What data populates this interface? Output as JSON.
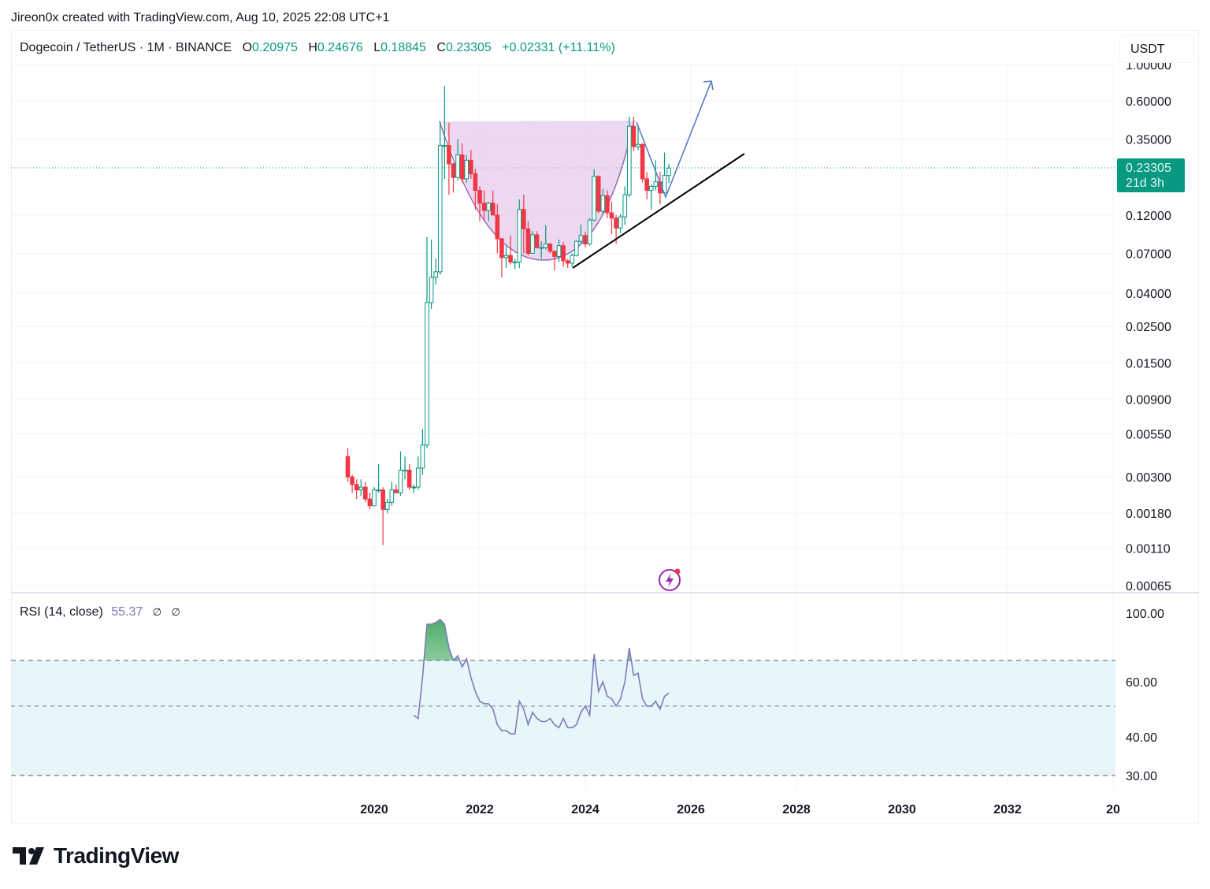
{
  "attribution": "Jireon0x created with TradingView.com, Aug 10, 2025 22:08 UTC+1",
  "legend": {
    "symbol": "Dogecoin / TetherUS · 1M · BINANCE",
    "open_label": "O",
    "open": "0.20975",
    "high_label": "H",
    "high": "0.24676",
    "low_label": "L",
    "low": "0.18845",
    "close_label": "C",
    "close": "0.23305",
    "change": "+0.02331 (+11.11%)"
  },
  "currency_button": "USDT",
  "last_price": {
    "value": "0.23305",
    "countdown": "21d 3h"
  },
  "rsi_legend": {
    "label": "RSI (14, close)",
    "value": "55.37",
    "empty1": "∅",
    "empty2": "∅"
  },
  "logo_text": "TradingView",
  "colors": {
    "up": "#089981",
    "down": "#f23645",
    "rsi_line": "#7e7bb9",
    "cup_fill": "#e1bee7",
    "rsi_band": "#e6f6fb",
    "arrow": "#5b7cc4",
    "trendline": "#000000"
  },
  "icons": {
    "alert": "lightning-alert-icon"
  },
  "chart_data": [
    {
      "type": "candlestick",
      "title": "Dogecoin / TetherUS · 1M · BINANCE",
      "y_scale": "log",
      "y_ticks": [
        "1.00000",
        "0.60000",
        "0.35000",
        "0.12000",
        "0.07000",
        "0.04000",
        "0.02500",
        "0.01500",
        "0.00900",
        "0.00550",
        "0.00300",
        "0.00180",
        "0.00110",
        "0.00065"
      ],
      "x_ticks": [
        "2020",
        "2022",
        "2024",
        "2026",
        "2028",
        "2030",
        "2032",
        "20"
      ],
      "grid": true,
      "candles_fields": [
        "month",
        "open",
        "high",
        "low",
        "close"
      ],
      "candles": [
        [
          "2019-07",
          0.004,
          0.0045,
          0.0028,
          0.003
        ],
        [
          "2019-08",
          0.003,
          0.0031,
          0.0024,
          0.0027
        ],
        [
          "2019-09",
          0.0027,
          0.0029,
          0.0022,
          0.0025
        ],
        [
          "2019-10",
          0.0025,
          0.0029,
          0.0023,
          0.0026
        ],
        [
          "2019-11",
          0.0026,
          0.0028,
          0.0021,
          0.0022
        ],
        [
          "2019-12",
          0.0022,
          0.0024,
          0.0019,
          0.002
        ],
        [
          "2020-01",
          0.002,
          0.0026,
          0.002,
          0.0025
        ],
        [
          "2020-02",
          0.0025,
          0.0036,
          0.0024,
          0.0025
        ],
        [
          "2020-03",
          0.0025,
          0.0026,
          0.00115,
          0.0019
        ],
        [
          "2020-04",
          0.0019,
          0.0022,
          0.0018,
          0.0021
        ],
        [
          "2020-05",
          0.0021,
          0.0028,
          0.002,
          0.0025
        ],
        [
          "2020-06",
          0.0025,
          0.0027,
          0.0024,
          0.0024
        ],
        [
          "2020-07",
          0.0024,
          0.0043,
          0.0023,
          0.0033
        ],
        [
          "2020-08",
          0.0033,
          0.004,
          0.0029,
          0.0033
        ],
        [
          "2020-09",
          0.0033,
          0.0036,
          0.0025,
          0.0026
        ],
        [
          "2020-10",
          0.0026,
          0.0027,
          0.0024,
          0.0026
        ],
        [
          "2020-11",
          0.0026,
          0.004,
          0.0025,
          0.0034
        ],
        [
          "2020-12",
          0.0034,
          0.0059,
          0.0031,
          0.0047
        ],
        [
          "2021-01",
          0.0047,
          0.088,
          0.0045,
          0.035
        ],
        [
          "2021-02",
          0.035,
          0.085,
          0.032,
          0.05
        ],
        [
          "2021-03",
          0.05,
          0.065,
          0.045,
          0.054
        ],
        [
          "2021-04",
          0.054,
          0.45,
          0.052,
          0.32
        ],
        [
          "2021-05",
          0.32,
          0.74,
          0.2,
          0.32
        ],
        [
          "2021-06",
          0.32,
          0.44,
          0.16,
          0.247
        ],
        [
          "2021-07",
          0.247,
          0.25,
          0.165,
          0.204
        ],
        [
          "2021-08",
          0.204,
          0.35,
          0.195,
          0.28
        ],
        [
          "2021-09",
          0.28,
          0.33,
          0.19,
          0.2
        ],
        [
          "2021-10",
          0.2,
          0.28,
          0.19,
          0.26
        ],
        [
          "2021-11",
          0.26,
          0.3,
          0.2,
          0.215
        ],
        [
          "2021-12",
          0.215,
          0.23,
          0.13,
          0.17
        ],
        [
          "2022-01",
          0.17,
          0.18,
          0.11,
          0.142
        ],
        [
          "2022-02",
          0.142,
          0.17,
          0.11,
          0.128
        ],
        [
          "2022-03",
          0.128,
          0.145,
          0.11,
          0.142
        ],
        [
          "2022-04",
          0.142,
          0.17,
          0.12,
          0.12
        ],
        [
          "2022-05",
          0.12,
          0.14,
          0.07,
          0.086
        ],
        [
          "2022-06",
          0.086,
          0.087,
          0.05,
          0.066
        ],
        [
          "2022-07",
          0.066,
          0.077,
          0.057,
          0.068
        ],
        [
          "2022-08",
          0.068,
          0.09,
          0.06,
          0.062
        ],
        [
          "2022-09",
          0.062,
          0.065,
          0.056,
          0.062
        ],
        [
          "2022-10",
          0.062,
          0.15,
          0.057,
          0.13
        ],
        [
          "2022-11",
          0.13,
          0.16,
          0.07,
          0.099
        ],
        [
          "2022-12",
          0.099,
          0.11,
          0.068,
          0.07
        ],
        [
          "2023-01",
          0.07,
          0.096,
          0.07,
          0.091
        ],
        [
          "2023-02",
          0.091,
          0.096,
          0.075,
          0.076
        ],
        [
          "2023-03",
          0.076,
          0.083,
          0.065,
          0.076
        ],
        [
          "2023-04",
          0.076,
          0.104,
          0.074,
          0.08
        ],
        [
          "2023-05",
          0.08,
          0.08,
          0.07,
          0.072
        ],
        [
          "2023-06",
          0.072,
          0.073,
          0.055,
          0.067
        ],
        [
          "2023-07",
          0.067,
          0.085,
          0.062,
          0.078
        ],
        [
          "2023-08",
          0.078,
          0.082,
          0.058,
          0.063
        ],
        [
          "2023-09",
          0.063,
          0.065,
          0.057,
          0.061
        ],
        [
          "2023-10",
          0.061,
          0.07,
          0.058,
          0.068
        ],
        [
          "2023-11",
          0.068,
          0.084,
          0.067,
          0.083
        ],
        [
          "2023-12",
          0.083,
          0.105,
          0.08,
          0.09
        ],
        [
          "2024-01",
          0.09,
          0.095,
          0.076,
          0.08
        ],
        [
          "2024-02",
          0.08,
          0.115,
          0.078,
          0.112
        ],
        [
          "2024-03",
          0.112,
          0.229,
          0.11,
          0.207
        ],
        [
          "2024-04",
          0.207,
          0.21,
          0.123,
          0.127
        ],
        [
          "2024-05",
          0.127,
          0.174,
          0.12,
          0.158
        ],
        [
          "2024-06",
          0.158,
          0.17,
          0.115,
          0.124
        ],
        [
          "2024-07",
          0.124,
          0.145,
          0.092,
          0.115
        ],
        [
          "2024-08",
          0.115,
          0.12,
          0.08,
          0.1
        ],
        [
          "2024-09",
          0.1,
          0.122,
          0.093,
          0.117
        ],
        [
          "2024-10",
          0.117,
          0.18,
          0.105,
          0.16
        ],
        [
          "2024-11",
          0.16,
          0.48,
          0.155,
          0.42
        ],
        [
          "2024-12",
          0.42,
          0.48,
          0.295,
          0.315
        ],
        [
          "2025-01",
          0.315,
          0.43,
          0.3,
          0.325
        ],
        [
          "2025-02",
          0.325,
          0.33,
          0.19,
          0.2
        ],
        [
          "2025-03",
          0.2,
          0.22,
          0.15,
          0.17
        ],
        [
          "2025-04",
          0.17,
          0.185,
          0.13,
          0.18
        ],
        [
          "2025-05",
          0.18,
          0.26,
          0.17,
          0.192
        ],
        [
          "2025-06",
          0.192,
          0.22,
          0.14,
          0.164
        ],
        [
          "2025-07",
          0.164,
          0.29,
          0.16,
          0.2098
        ],
        [
          "2025-08",
          0.20975,
          0.24676,
          0.18845,
          0.23305
        ]
      ],
      "last_price": 0.23305
    },
    {
      "type": "line",
      "title": "RSI (14, close)",
      "y_ticks": [
        "100.00",
        "60.00",
        "40.00",
        "30.00"
      ],
      "levels": [
        70,
        50,
        30
      ],
      "band": [
        30,
        70
      ],
      "start_month": "2020-10",
      "values": [
        47,
        46,
        62,
        93,
        93,
        94,
        96,
        93,
        78,
        70,
        73,
        67,
        71,
        62,
        56,
        52,
        51,
        51,
        49,
        44,
        42,
        42,
        41,
        41,
        52,
        49,
        44,
        48,
        46,
        45,
        45,
        46,
        44,
        43,
        46,
        43,
        43,
        44,
        48,
        50,
        47,
        74,
        56,
        60,
        54,
        53,
        50,
        53,
        60,
        78,
        63,
        64,
        53,
        50,
        50,
        52,
        49,
        54,
        55.37
      ]
    }
  ]
}
